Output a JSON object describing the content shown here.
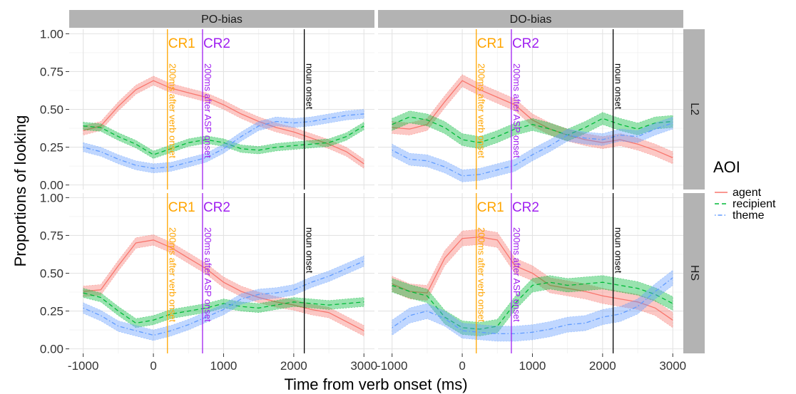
{
  "chart_data": {
    "type": "line",
    "title": "",
    "xlabel": "Time from verb onset (ms)",
    "ylabel": "Proportions of looking",
    "xlim": [
      -1200,
      3150
    ],
    "ylim": [
      -0.03,
      1.03
    ],
    "x_ticks": [
      -1000,
      0,
      1000,
      2000,
      3000
    ],
    "x_tick_labels": [
      "-1000",
      "0",
      "1000",
      "2000",
      "3000"
    ],
    "y_ticks": [
      0,
      0.25,
      0.5,
      0.75,
      1
    ],
    "y_tick_labels": [
      "0.00",
      "0.25",
      "0.50",
      "0.75",
      "1.00"
    ],
    "grid": true,
    "facet_columns": [
      "PO-bias",
      "DO-bias"
    ],
    "facet_rows": [
      "L2",
      "HS"
    ],
    "legend": {
      "title": "AOI",
      "position": "right",
      "entries": [
        {
          "label": "agent",
          "color": "#F8766D",
          "dash": "solid"
        },
        {
          "label": "recipient",
          "color": "#00BA38",
          "dash": "dashed"
        },
        {
          "label": "theme",
          "color": "#619CFF",
          "dash": "dotdash"
        }
      ]
    },
    "reference_lines": [
      {
        "x": 200,
        "label": "CR1",
        "note": "200ms after verb onset",
        "color": "#FFA500"
      },
      {
        "x": 700,
        "label": "CR2",
        "note": "200ms after ASP onset",
        "color": "#A020F0"
      },
      {
        "x": 2150,
        "label": "",
        "note": "noun onset",
        "color": "#000000"
      }
    ],
    "x": [
      -1000,
      -750,
      -500,
      -250,
      0,
      250,
      500,
      750,
      1000,
      1250,
      1500,
      1750,
      2000,
      2250,
      2500,
      2750,
      3000
    ],
    "panels": [
      {
        "column": "PO-bias",
        "row": "L2",
        "series": [
          {
            "name": "agent",
            "values": [
              0.36,
              0.39,
              0.52,
              0.63,
              0.69,
              0.64,
              0.61,
              0.58,
              0.53,
              0.47,
              0.42,
              0.38,
              0.35,
              0.31,
              0.27,
              0.22,
              0.14
            ],
            "band": 0.03
          },
          {
            "name": "recipient",
            "values": [
              0.39,
              0.38,
              0.32,
              0.27,
              0.2,
              0.24,
              0.28,
              0.3,
              0.28,
              0.24,
              0.23,
              0.25,
              0.26,
              0.27,
              0.28,
              0.32,
              0.39
            ],
            "band": 0.025
          },
          {
            "name": "theme",
            "values": [
              0.25,
              0.22,
              0.17,
              0.13,
              0.11,
              0.12,
              0.15,
              0.18,
              0.24,
              0.32,
              0.39,
              0.42,
              0.41,
              0.42,
              0.44,
              0.46,
              0.47
            ],
            "band": 0.03
          }
        ]
      },
      {
        "column": "DO-bias",
        "row": "L2",
        "series": [
          {
            "name": "agent",
            "values": [
              0.38,
              0.37,
              0.4,
              0.55,
              0.69,
              0.63,
              0.58,
              0.53,
              0.43,
              0.37,
              0.33,
              0.3,
              0.28,
              0.3,
              0.27,
              0.23,
              0.18
            ],
            "band": 0.04
          },
          {
            "name": "recipient",
            "values": [
              0.4,
              0.45,
              0.43,
              0.38,
              0.3,
              0.28,
              0.32,
              0.37,
              0.4,
              0.37,
              0.33,
              0.38,
              0.44,
              0.4,
              0.37,
              0.41,
              0.42
            ],
            "band": 0.04
          },
          {
            "name": "theme",
            "values": [
              0.23,
              0.17,
              0.16,
              0.12,
              0.06,
              0.07,
              0.1,
              0.13,
              0.2,
              0.26,
              0.33,
              0.31,
              0.3,
              0.33,
              0.32,
              0.37,
              0.41
            ],
            "band": 0.04
          }
        ]
      },
      {
        "column": "PO-bias",
        "row": "HS",
        "series": [
          {
            "name": "agent",
            "values": [
              0.38,
              0.39,
              0.55,
              0.7,
              0.72,
              0.67,
              0.6,
              0.53,
              0.44,
              0.38,
              0.34,
              0.31,
              0.29,
              0.26,
              0.24,
              0.18,
              0.12
            ],
            "band": 0.035
          },
          {
            "name": "recipient",
            "values": [
              0.37,
              0.34,
              0.25,
              0.17,
              0.19,
              0.23,
              0.25,
              0.27,
              0.3,
              0.28,
              0.27,
              0.29,
              0.31,
              0.3,
              0.29,
              0.3,
              0.31
            ],
            "band": 0.03
          },
          {
            "name": "theme",
            "values": [
              0.27,
              0.22,
              0.15,
              0.12,
              0.09,
              0.12,
              0.16,
              0.21,
              0.26,
              0.33,
              0.36,
              0.37,
              0.39,
              0.44,
              0.48,
              0.53,
              0.58
            ],
            "band": 0.035
          }
        ]
      },
      {
        "column": "DO-bias",
        "row": "HS",
        "series": [
          {
            "name": "agent",
            "values": [
              0.43,
              0.38,
              0.37,
              0.6,
              0.73,
              0.74,
              0.72,
              0.55,
              0.5,
              0.42,
              0.4,
              0.38,
              0.35,
              0.33,
              0.31,
              0.27,
              0.19
            ],
            "band": 0.05
          },
          {
            "name": "recipient",
            "values": [
              0.42,
              0.38,
              0.35,
              0.21,
              0.14,
              0.13,
              0.15,
              0.3,
              0.42,
              0.44,
              0.42,
              0.43,
              0.44,
              0.42,
              0.4,
              0.36,
              0.3
            ],
            "band": 0.045
          },
          {
            "name": "theme",
            "values": [
              0.14,
              0.22,
              0.25,
              0.2,
              0.12,
              0.11,
              0.1,
              0.1,
              0.11,
              0.13,
              0.16,
              0.17,
              0.21,
              0.23,
              0.28,
              0.38,
              0.47
            ],
            "band": 0.05
          }
        ]
      }
    ]
  }
}
